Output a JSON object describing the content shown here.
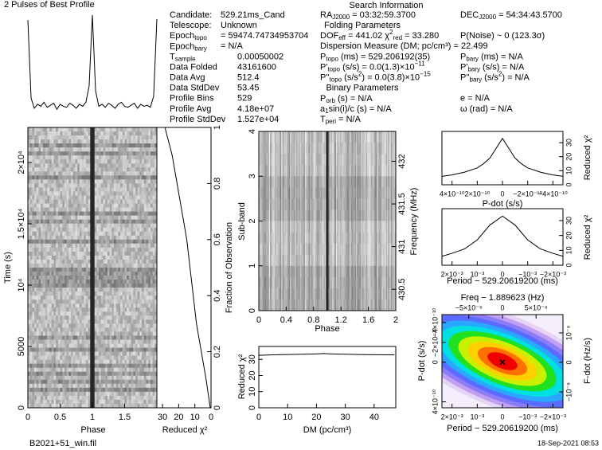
{
  "info": {
    "title": "Search Information",
    "col1": [
      {
        "label": "Candidate:",
        "value": "529.21ms_Cand"
      },
      {
        "label": "Telescope:",
        "value": "Unknown"
      },
      {
        "label": [
          "Epoch",
          {
            "sub": "topo"
          }
        ],
        "value": "=  59474.74734953704"
      },
      {
        "label": [
          "Epoch",
          {
            "sub": "bary"
          }
        ],
        "value": "=  N/A"
      },
      {
        "label": [
          "T",
          {
            "sub": "sample"
          }
        ],
        "value": "0.00050002"
      },
      {
        "label": "Data Folded",
        "value": "43161600"
      },
      {
        "label": "Data Avg",
        "value": "512.4"
      },
      {
        "label": "Data StdDev",
        "value": "53.45"
      },
      {
        "label": "Profile Bins",
        "value": "529"
      },
      {
        "label": "Profile Avg",
        "value": "4.18e+07"
      },
      {
        "label": "Profile StdDev",
        "value": "1.527e+04"
      }
    ],
    "col2": [
      [
        "RA",
        {
          "sub": "J2000"
        },
        " = 03:32:59.3700"
      ],
      "Folding Parameters",
      [
        "DOF",
        {
          "sub": "eff"
        },
        " = 441.02  χ",
        {
          "sup": "2"
        },
        {
          "sub": "red"
        },
        " = 33.280"
      ],
      "Dispersion Measure (DM; pc/cm³) = 22.499",
      [
        "P",
        {
          "sub": "topo"
        },
        " (ms) =  529.206192(35)"
      ],
      [
        "P'",
        {
          "sub": "topo"
        },
        " (s/s) = 0.0(1.3)×10",
        {
          "sup": "−11"
        }
      ],
      [
        "P''",
        {
          "sub": "topo"
        },
        " (s/s",
        {
          "sup": "2"
        },
        ") = 0.0(3.8)×10",
        {
          "sup": "−15"
        }
      ],
      "Binary Parameters",
      [
        "P",
        {
          "sub": "orb"
        },
        " (s) = N/A"
      ],
      [
        "a",
        {
          "sub": "1"
        },
        "sin(i)/c (s) = N/A"
      ],
      [
        "T",
        {
          "sub": "peri"
        },
        " = N/A"
      ]
    ],
    "col3": [
      [
        "DEC",
        {
          "sub": "J2000"
        },
        " = 54:34:43.5700"
      ],
      "P(Noise) ~ 0   (123.3σ)",
      [
        "P",
        {
          "sub": "bary"
        },
        " (ms) = N/A"
      ],
      [
        "P'",
        {
          "sub": "bary"
        },
        " (s/s) = N/A"
      ],
      [
        "P''",
        {
          "sub": "bary"
        },
        " (s/s",
        {
          "sup": "2"
        },
        ") = N/A"
      ],
      "e = N/A",
      "ω (rad) = N/A"
    ]
  },
  "footer": {
    "file": "B2021+51_win.fil",
    "date": "18-Sep-2021 08:53"
  },
  "chart_data": [
    {
      "type": "line",
      "title": "2 Pulses of Best Profile",
      "x": [
        0,
        0.05,
        0.1,
        0.15,
        0.2,
        0.25,
        0.3,
        0.35,
        0.4,
        0.45,
        0.5,
        0.55,
        0.6,
        0.65,
        0.7,
        0.75,
        0.8,
        0.85,
        0.9,
        0.95,
        1,
        1.05,
        1.1,
        1.15,
        1.2,
        1.25,
        1.3,
        1.35,
        1.4,
        1.45,
        1.5,
        1.55,
        1.6,
        1.65,
        1.7,
        1.75,
        1.8,
        1.85,
        1.9,
        1.95,
        2
      ],
      "values": [
        95,
        18,
        8,
        12,
        10,
        14,
        9,
        11,
        13,
        7,
        12,
        10,
        9,
        13,
        11,
        8,
        12,
        10,
        14,
        30,
        100,
        25,
        10,
        12,
        9,
        13,
        11,
        8,
        12,
        14,
        10,
        9,
        11,
        13,
        8,
        12,
        10,
        11,
        9,
        20,
        96
      ],
      "xlim": [
        0,
        2
      ]
    },
    {
      "type": "heatmap",
      "xlabel": "Phase",
      "ylabel": "Time (s)",
      "xlim": [
        0,
        2
      ],
      "xticks": [
        0,
        0.5,
        1,
        1.5
      ],
      "ylim": [
        0,
        22860
      ],
      "yticks": [
        0,
        5000,
        {
          "value": 10000,
          "label": "10⁴"
        },
        {
          "value": 15000,
          "label": "1.5×10⁴"
        },
        {
          "value": 20000,
          "label": "2×10⁴"
        }
      ]
    },
    {
      "type": "line",
      "xlabel": "Reduced χ²",
      "ylabel": "Fraction of Observation",
      "x": [
        0.5,
        3,
        6,
        9,
        11,
        13,
        15,
        18,
        21,
        24,
        28.5
      ],
      "values": [
        0,
        0.1,
        0.2,
        0.3,
        0.4,
        0.5,
        0.6,
        0.7,
        0.8,
        0.9,
        1
      ],
      "xlim": [
        33.5,
        0
      ],
      "xticks": [
        30,
        20,
        10,
        0
      ],
      "ylim": [
        0,
        1
      ],
      "yticks": [
        0,
        0.2,
        0.4,
        0.6,
        0.8,
        1
      ]
    },
    {
      "type": "heatmap",
      "xlabel": "Phase",
      "ylabel": "Sub-band",
      "y2label": "Frequency (MHz)",
      "xlim": [
        0,
        2
      ],
      "xticks": [
        0,
        0.4,
        0.8,
        1.2,
        1.6,
        2
      ],
      "ylim": [
        0,
        4
      ],
      "yticks": [
        0,
        1,
        2,
        3,
        4
      ],
      "y2lim": [
        430.25,
        432.35
      ],
      "y2ticks": [
        430.5,
        431,
        431.5,
        432
      ]
    },
    {
      "type": "line",
      "xlabel": "DM (pc/cm³)",
      "ylabel": "Reduced χ²",
      "x": [
        0,
        5,
        10,
        15,
        20,
        22.5,
        25,
        30,
        35,
        40,
        47
      ],
      "values": [
        32.5,
        32.8,
        33,
        33.2,
        33.4,
        33.6,
        33.4,
        33.2,
        33,
        32.9,
        32.8
      ],
      "xlim": [
        0,
        47.5
      ],
      "xticks": [
        0,
        10,
        20,
        30,
        40
      ],
      "ylim": [
        0,
        38
      ],
      "yticks": [
        0,
        10,
        20,
        30
      ]
    },
    {
      "type": "line",
      "xlabel": "P-dot (s/s)",
      "ylabel": "Reduced χ²",
      "x": [
        -4.8e-10,
        -4e-10,
        -3e-10,
        -2e-10,
        -1.5e-10,
        -1e-10,
        -5e-11,
        0,
        5e-11,
        1e-10,
        1.5e-10,
        2e-10,
        3e-10,
        4e-10,
        4.8e-10
      ],
      "values": [
        6,
        7,
        9,
        12,
        15,
        19,
        26,
        33,
        26,
        19,
        15,
        12,
        9,
        7,
        6
      ],
      "xlim": [
        4.8e-10,
        -4.8e-10
      ],
      "xticks": [
        {
          "value": 4e-10,
          "label": "4×10⁻¹⁰"
        },
        {
          "value": 2e-10,
          "label": "2×10⁻¹⁰"
        },
        0,
        {
          "value": -2e-10,
          "label": "−2×10⁻¹⁰"
        },
        {
          "value": -4e-10,
          "label": "−4×10⁻¹⁰"
        }
      ],
      "ylim": [
        0,
        38
      ],
      "yticks": [
        0,
        10,
        20,
        30
      ]
    },
    {
      "type": "line",
      "xlabel": "Period − 529.20619200 (ms)",
      "ylabel": "Reduced χ²",
      "x": [
        -0.0024,
        -0.002,
        -0.0015,
        -0.001,
        -0.0005,
        0,
        0.0005,
        0.001,
        0.0015,
        0.002,
        0.0024
      ],
      "values": [
        6,
        8,
        11,
        17,
        27,
        33,
        27,
        17,
        11,
        8,
        6
      ],
      "xlim": [
        0.0024,
        -0.0024
      ],
      "xticks": [
        {
          "value": 0.002,
          "label": "2×10⁻³"
        },
        {
          "value": 0.001,
          "label": "10⁻³"
        },
        0,
        {
          "value": -0.001,
          "label": "−10⁻³"
        },
        {
          "value": -0.002,
          "label": "−2×10⁻³"
        }
      ],
      "ylim": [
        0,
        38
      ],
      "yticks": [
        0,
        10,
        20,
        30
      ]
    },
    {
      "type": "heatmap",
      "xlabel": "Period − 529.20619200 (ms)",
      "x2label": "Freq − 1.889623 (Hz)",
      "ylabel": "P-dot (s/s)",
      "y2label": "F-dot (Hz/s)",
      "xlim": [
        0.0024,
        -0.0024
      ],
      "xticks": [
        {
          "value": 0.002,
          "label": "2×10⁻³"
        },
        {
          "value": 0.001,
          "label": "10⁻³"
        },
        0,
        {
          "value": -0.001,
          "label": "−10⁻³"
        },
        {
          "value": -0.002,
          "label": "−2×10⁻³"
        }
      ],
      "x2lim": [
        -9e-08,
        9e-08
      ],
      "x2ticks": [
        {
          "value": -5e-08,
          "label": "−5×10⁻⁸"
        },
        0,
        {
          "value": 5e-08,
          "label": "5×10⁻⁸"
        }
      ],
      "ylim": [
        4.6e-10,
        -4.8e-10
      ],
      "yticks": [
        {
          "value": 4e-10,
          "label": "4×10⁻¹⁰"
        },
        0,
        {
          "value": -2e-10,
          "label": "−2×10⁻¹⁰"
        },
        {
          "value": -4e-10,
          "label": "−4×10⁻¹⁰"
        }
      ],
      "y2lim": [
        -1.54e-09,
        1.62e-09
      ],
      "y2ticks": [
        {
          "value": -1e-09,
          "label": "−10⁻⁹"
        },
        0,
        {
          "value": 1e-09,
          "label": "10⁻⁹"
        }
      ],
      "marker": {
        "x": 0,
        "y": 0
      }
    }
  ]
}
